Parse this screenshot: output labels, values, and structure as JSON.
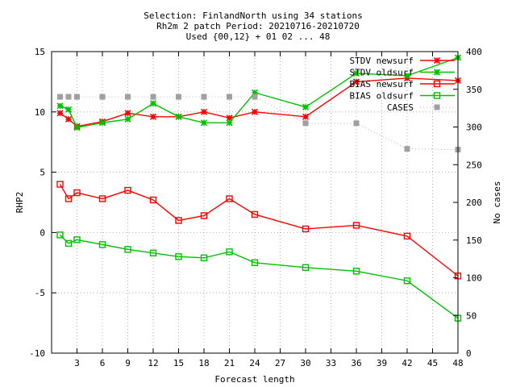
{
  "chart_data": {
    "type": "line",
    "title_lines": [
      "Selection: FinlandNorth using    34 stations",
      "Rh2m 2 patch   Period: 20210716-20210720",
      "Used {00,12} + 01 02 ... 48"
    ],
    "xlabel": "Forecast length",
    "ylabel": "RHP2",
    "y2label": "No cases",
    "xlim": [
      0,
      48
    ],
    "ylim": [
      -10,
      15
    ],
    "y2lim": [
      0,
      400
    ],
    "xticks": [
      3,
      6,
      9,
      12,
      15,
      18,
      21,
      24,
      27,
      30,
      33,
      36,
      39,
      42,
      45,
      48
    ],
    "yticks": [
      -10,
      -5,
      0,
      5,
      10,
      15
    ],
    "y2ticks": [
      0,
      50,
      100,
      150,
      200,
      250,
      300,
      350,
      400
    ],
    "legend_position": "top-right",
    "grid": true,
    "x": [
      1,
      2,
      3,
      6,
      9,
      12,
      15,
      18,
      21,
      24,
      30,
      36,
      42,
      48
    ],
    "series": [
      {
        "name": "STDV newsurf",
        "color": "#ff0000",
        "marker": "star",
        "dashed": false,
        "axis": "y",
        "values": [
          9.9,
          9.4,
          8.8,
          9.2,
          9.9,
          9.6,
          9.6,
          10.0,
          9.5,
          10.0,
          9.6,
          12.5,
          12.8,
          12.6
        ]
      },
      {
        "name": "STDV oldsurf",
        "color": "#00c000",
        "marker": "star",
        "dashed": false,
        "axis": "y",
        "values": [
          10.5,
          10.2,
          8.7,
          9.1,
          9.4,
          10.7,
          9.6,
          9.1,
          9.1,
          11.6,
          10.4,
          13.2,
          13.0,
          14.5
        ]
      },
      {
        "name": "BIAS newsurf",
        "color": "#ff0000",
        "marker": "square",
        "dashed": false,
        "axis": "y",
        "values": [
          4.0,
          2.8,
          3.3,
          2.8,
          3.5,
          2.7,
          1.0,
          1.4,
          2.8,
          1.5,
          0.3,
          0.6,
          -0.3,
          -3.6
        ]
      },
      {
        "name": "BIAS oldsurf",
        "color": "#00c000",
        "marker": "square",
        "dashed": false,
        "axis": "y",
        "values": [
          -0.2,
          -0.9,
          -0.6,
          -1.0,
          -1.4,
          -1.7,
          -2.0,
          -2.1,
          -1.6,
          -2.5,
          -2.9,
          -3.2,
          -4.0,
          -7.1
        ]
      },
      {
        "name": "CASES",
        "color": "#a0a0a0",
        "marker": "filled-square",
        "dashed": true,
        "axis": "y2",
        "values": [
          340,
          340,
          340,
          340,
          340,
          340,
          340,
          340,
          340,
          340,
          305,
          305,
          271,
          270
        ]
      }
    ]
  }
}
